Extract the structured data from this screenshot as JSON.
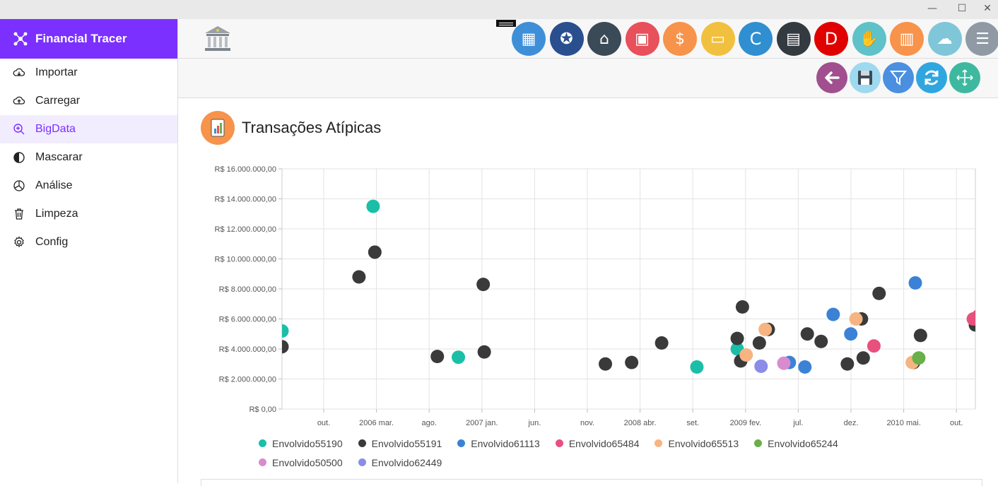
{
  "app": {
    "name": "Financial Tracer"
  },
  "sidebar": {
    "items": [
      {
        "label": "Importar",
        "icon": "cloud-download-icon"
      },
      {
        "label": "Carregar",
        "icon": "cloud-upload-icon"
      },
      {
        "label": "BigData",
        "icon": "zoom-icon",
        "active": true
      },
      {
        "label": "Mascarar",
        "icon": "contrast-icon"
      },
      {
        "label": "Análise",
        "icon": "pie-chart-icon"
      },
      {
        "label": "Limpeza",
        "icon": "trash-icon"
      },
      {
        "label": "Config",
        "icon": "gear-icon"
      }
    ]
  },
  "topbar": {
    "app_icons": [
      {
        "name": "calendar-icon",
        "color": "#3e8fd8"
      },
      {
        "name": "network-icon",
        "color": "#2a4f8f"
      },
      {
        "name": "bank-icon",
        "color": "#3b4a57"
      },
      {
        "name": "briefcase-icon",
        "color": "#e8505b"
      },
      {
        "name": "money-hand-icon",
        "color": "#f7934a"
      },
      {
        "name": "credit-card-icon",
        "color": "#f2c03f"
      },
      {
        "name": "c-letter-icon",
        "color": "#2f8fd0",
        "text": "C"
      },
      {
        "name": "wallet-icon",
        "color": "#333a40"
      },
      {
        "name": "d-letter-icon",
        "color": "#e00000",
        "text": "D"
      },
      {
        "name": "handshake-icon",
        "color": "#5fc2c8"
      },
      {
        "name": "report-icon",
        "color": "#f7934a"
      },
      {
        "name": "cloud-settings-icon",
        "color": "#7fc6d8"
      },
      {
        "name": "invoice-icon",
        "color": "#8f9aa5"
      }
    ]
  },
  "toolbar": {
    "buttons": [
      {
        "name": "back-button",
        "color": "#a14f8e"
      },
      {
        "name": "save-button",
        "color": "#9fd9ef"
      },
      {
        "name": "filter-button",
        "color": "#4a8fe0"
      },
      {
        "name": "refresh-button",
        "color": "#2fa6e0"
      },
      {
        "name": "fullscreen-button",
        "color": "#3fb8a0"
      }
    ]
  },
  "page": {
    "title": "Transações Atípicas"
  },
  "chart_data": {
    "type": "scatter",
    "y_ticks": [
      "R$ 0,00",
      "R$ 2.000.000,00",
      "R$ 4.000.000,00",
      "R$ 6.000.000,00",
      "R$ 8.000.000,00",
      "R$ 10.000.000,00",
      "R$ 12.000.000,00",
      "R$ 14.000.000,00",
      "R$ 16.000.000,00"
    ],
    "ylim": [
      0,
      16000000
    ],
    "x_tick_labels": [
      "out.",
      "2006 mar.",
      "ago.",
      "2007 jan.",
      "jun.",
      "nov.",
      "2008 abr.",
      "set.",
      "2009 fev.",
      "jul.",
      "dez.",
      "2010 mai.",
      "out."
    ],
    "xlim": [
      "2005-06",
      "2010-12"
    ],
    "grid": true,
    "legend_position": "bottom",
    "series": [
      {
        "name": "Envolvido55190",
        "color": "#1bbfa8",
        "points": [
          [
            "2005-06-01",
            5200000
          ],
          [
            "2006-02-20",
            13500000
          ],
          [
            "2006-10-25",
            3450000
          ],
          [
            "2008-09-15",
            2800000
          ],
          [
            "2009-01-10",
            4000000
          ]
        ]
      },
      {
        "name": "Envolvido55191",
        "color": "#3a3a3a",
        "points": [
          [
            "2005-06-01",
            4150000
          ],
          [
            "2006-01-10",
            8800000
          ],
          [
            "2006-02-25",
            10450000
          ],
          [
            "2006-08-25",
            3500000
          ],
          [
            "2007-01-05",
            8300000
          ],
          [
            "2007-01-08",
            3800000
          ],
          [
            "2007-12-25",
            3000000
          ],
          [
            "2008-03-10",
            3100000
          ],
          [
            "2008-06-05",
            4400000
          ],
          [
            "2009-01-10",
            4700000
          ],
          [
            "2009-01-25",
            6800000
          ],
          [
            "2009-01-20",
            3200000
          ],
          [
            "2009-03-15",
            4400000
          ],
          [
            "2009-04-10",
            5300000
          ],
          [
            "2009-08-01",
            5000000
          ],
          [
            "2009-09-10",
            4500000
          ],
          [
            "2009-11-25",
            3000000
          ],
          [
            "2010-01-10",
            3400000
          ],
          [
            "2010-01-05",
            6000000
          ],
          [
            "2010-02-25",
            7700000
          ],
          [
            "2010-06-25",
            4900000
          ],
          [
            "2010-06-05",
            3100000
          ],
          [
            "2010-12-01",
            5600000
          ]
        ]
      },
      {
        "name": "Envolvido61113",
        "color": "#3b82d6",
        "points": [
          [
            "2009-06-10",
            3100000
          ],
          [
            "2009-07-25",
            2800000
          ],
          [
            "2009-10-15",
            6300000
          ],
          [
            "2009-12-05",
            5000000
          ],
          [
            "2010-06-10",
            8400000
          ]
        ]
      },
      {
        "name": "Envolvido65484",
        "color": "#e8507e",
        "points": [
          [
            "2010-02-10",
            4200000
          ],
          [
            "2010-11-25",
            6000000
          ],
          [
            "2010-12-10",
            6200000
          ]
        ]
      },
      {
        "name": "Envolvido65513",
        "color": "#f6b482",
        "points": [
          [
            "2009-02-05",
            3600000
          ],
          [
            "2009-04-01",
            5300000
          ],
          [
            "2009-12-20",
            6000000
          ],
          [
            "2010-06-01",
            3100000
          ]
        ]
      },
      {
        "name": "Envolvido65244",
        "color": "#69b04a",
        "points": [
          [
            "2010-06-20",
            3400000
          ]
        ]
      },
      {
        "name": "Envolvido50500",
        "color": "#d98bcf",
        "points": [
          [
            "2009-05-25",
            3050000
          ]
        ]
      },
      {
        "name": "Envolvido62449",
        "color": "#8b8be8",
        "points": [
          [
            "2009-03-20",
            2850000
          ]
        ]
      }
    ]
  }
}
